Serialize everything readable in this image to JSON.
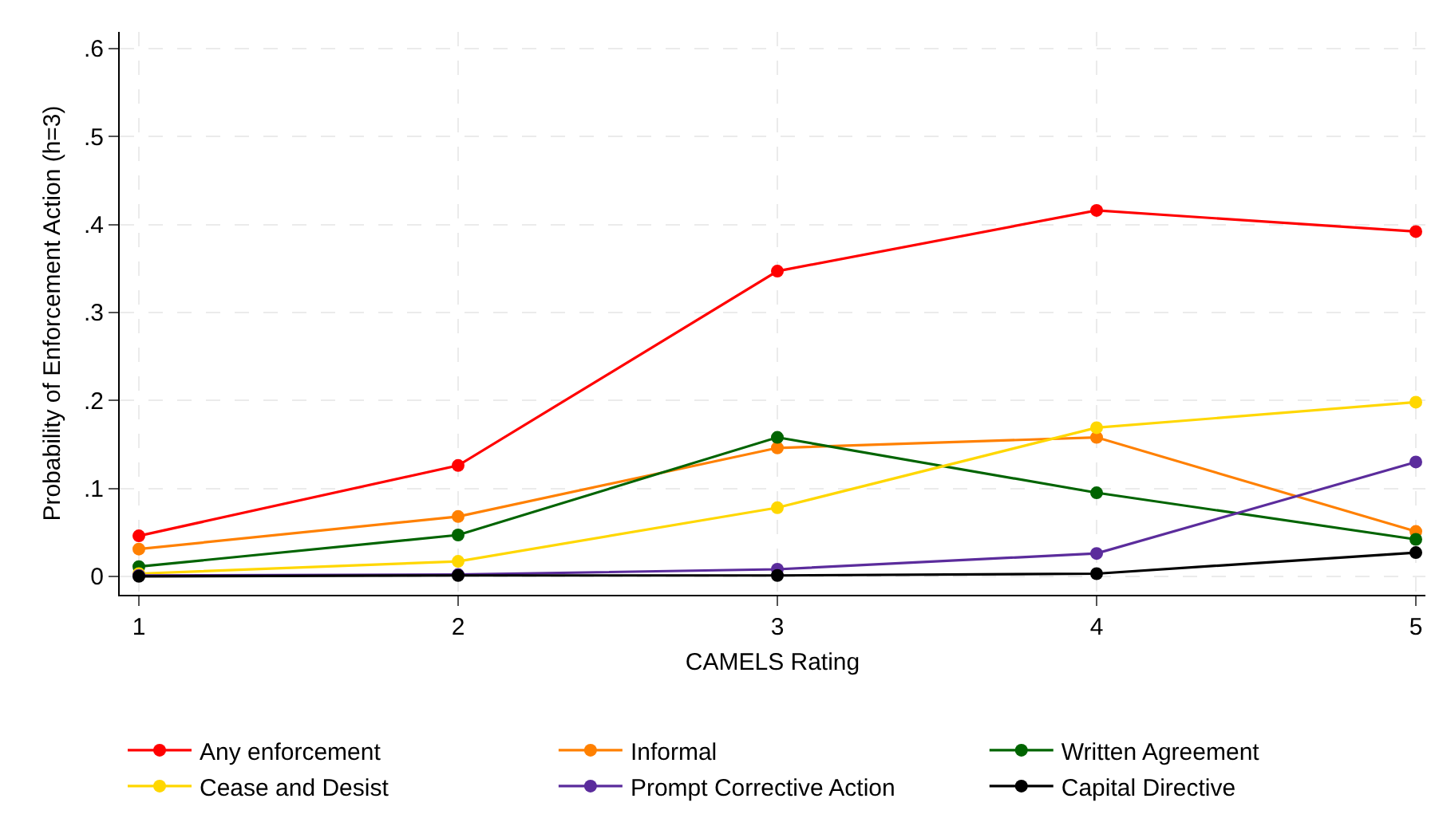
{
  "chart_data": {
    "type": "line",
    "xlabel": "CAMELS Rating",
    "ylabel": "Probability of Enforcement Action (h=3)",
    "x": [
      1,
      2,
      3,
      4,
      5
    ],
    "series": [
      {
        "name": "Any enforcement",
        "color": "#ff0000",
        "values": [
          0.046,
          0.126,
          0.347,
          0.416,
          0.392
        ]
      },
      {
        "name": "Informal",
        "color": "#ff8000",
        "values": [
          0.031,
          0.068,
          0.146,
          0.158,
          0.051
        ]
      },
      {
        "name": "Written Agreement",
        "color": "#006400",
        "values": [
          0.011,
          0.047,
          0.158,
          0.095,
          0.042
        ]
      },
      {
        "name": "Cease and Desist",
        "color": "#ffd700",
        "values": [
          0.003,
          0.017,
          0.078,
          0.169,
          0.198
        ]
      },
      {
        "name": "Prompt Corrective Action",
        "color": "#5b2c9c",
        "values": [
          0.001,
          0.002,
          0.008,
          0.026,
          0.13
        ]
      },
      {
        "name": "Capital Directive",
        "color": "#000000",
        "values": [
          0,
          0.001,
          0.001,
          0.003,
          0.027
        ]
      }
    ],
    "xlim": [
      0.94,
      5.03
    ],
    "xticks": [
      1,
      2,
      3,
      4,
      5
    ],
    "ylim": [
      -0.021,
      0.619
    ],
    "yticks": [
      {
        "value": 0,
        "label": "0"
      },
      {
        "value": 0.1,
        "label": ".1"
      },
      {
        "value": 0.2,
        "label": ".2"
      },
      {
        "value": 0.3,
        "label": ".3"
      },
      {
        "value": 0.4,
        "label": ".4"
      },
      {
        "value": 0.5,
        "label": ".5"
      },
      {
        "value": 0.6,
        "label": ".6"
      }
    ],
    "grid": true,
    "legend": "bottom",
    "marker": "circle",
    "line_style": "solid"
  }
}
